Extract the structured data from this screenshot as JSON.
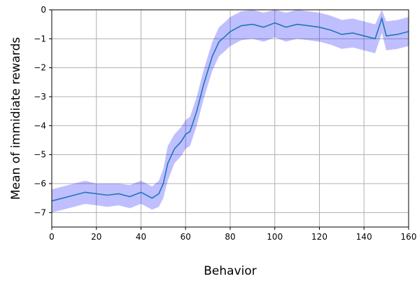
{
  "chart_data": {
    "type": "line",
    "title": "",
    "xlabel": "Behavior",
    "ylabel": "Mean of immidiate rewards",
    "xlim": [
      0,
      160
    ],
    "ylim": [
      -7.5,
      0
    ],
    "x_ticks": [
      0,
      20,
      40,
      60,
      80,
      100,
      120,
      140,
      160
    ],
    "y_ticks": [
      0,
      -1,
      -2,
      -3,
      -4,
      -5,
      -6,
      -7
    ],
    "x_tick_labels": [
      "0",
      "20",
      "40",
      "60",
      "80",
      "100",
      "120",
      "140",
      "160"
    ],
    "y_tick_labels": [
      "0",
      "−1",
      "−2",
      "−3",
      "−4",
      "−5",
      "−6",
      "−7"
    ],
    "grid": true,
    "line_color": "#1f77b4",
    "band_color": "#0000ff",
    "band_opacity": 0.25,
    "series": [
      {
        "x": [
          0,
          5,
          10,
          15,
          20,
          25,
          30,
          35,
          40,
          45,
          48,
          50,
          52,
          55,
          58,
          60,
          62,
          65,
          68,
          70,
          72,
          75,
          78,
          80,
          85,
          90,
          95,
          100,
          105,
          110,
          115,
          120,
          125,
          130,
          135,
          140,
          145,
          148,
          150,
          155,
          160
        ],
        "mean": [
          -6.6,
          -6.5,
          -6.4,
          -6.3,
          -6.35,
          -6.4,
          -6.35,
          -6.45,
          -6.3,
          -6.5,
          -6.35,
          -6.0,
          -5.3,
          -4.8,
          -4.55,
          -4.3,
          -4.2,
          -3.5,
          -2.6,
          -2.1,
          -1.6,
          -1.1,
          -0.9,
          -0.75,
          -0.55,
          -0.5,
          -0.6,
          -0.45,
          -0.6,
          -0.5,
          -0.55,
          -0.6,
          -0.7,
          -0.85,
          -0.8,
          -0.9,
          -1.0,
          -0.3,
          -0.9,
          -0.85,
          -0.75
        ],
        "upper": [
          -6.2,
          -6.1,
          -6.0,
          -5.9,
          -6.0,
          -6.0,
          -6.0,
          -6.05,
          -5.9,
          -6.1,
          -5.9,
          -5.5,
          -4.7,
          -4.3,
          -4.05,
          -3.8,
          -3.7,
          -3.0,
          -2.1,
          -1.6,
          -1.1,
          -0.6,
          -0.4,
          -0.25,
          -0.05,
          0.0,
          -0.1,
          0.0,
          -0.1,
          0.0,
          -0.05,
          -0.1,
          -0.2,
          -0.35,
          -0.3,
          -0.4,
          -0.5,
          0.0,
          -0.4,
          -0.35,
          -0.25
        ],
        "lower": [
          -7.0,
          -6.9,
          -6.8,
          -6.7,
          -6.75,
          -6.8,
          -6.75,
          -6.85,
          -6.7,
          -6.9,
          -6.8,
          -6.5,
          -5.9,
          -5.3,
          -5.05,
          -4.8,
          -4.7,
          -4.0,
          -3.1,
          -2.6,
          -2.1,
          -1.6,
          -1.4,
          -1.25,
          -1.05,
          -1.0,
          -1.1,
          -0.95,
          -1.1,
          -1.0,
          -1.05,
          -1.1,
          -1.2,
          -1.35,
          -1.3,
          -1.4,
          -1.5,
          -0.8,
          -1.4,
          -1.35,
          -1.25
        ]
      }
    ]
  }
}
